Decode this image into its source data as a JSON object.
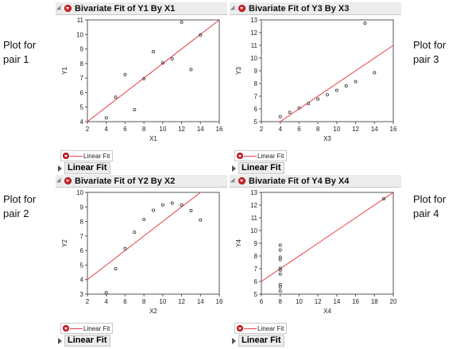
{
  "side_labels": {
    "pair1": "Plot for\npair 1",
    "pair2": "Plot for\npair 2",
    "pair3": "Plot for\npair 3",
    "pair4": "Plot for\npair 4"
  },
  "legend_label": "Linear Fit",
  "fit_label": "Linear Fit",
  "colors": {
    "fit_line": "#e8404a",
    "points": "#333333",
    "header_bg": "#ececec",
    "plot_border": "#555555"
  },
  "panels": [
    {
      "title": "Bivariate Fit of Y1 By X1",
      "chart_data": {
        "type": "scatter",
        "xlabel": "X1",
        "ylabel": "Y1",
        "xlim": [
          2,
          16
        ],
        "ylim": [
          4,
          11
        ],
        "xticks": [
          2,
          4,
          6,
          8,
          10,
          12,
          14,
          16
        ],
        "yticks": [
          4,
          5,
          6,
          7,
          8,
          9,
          10,
          11
        ],
        "x": [
          10,
          8,
          13,
          9,
          11,
          14,
          6,
          4,
          12,
          7,
          5
        ],
        "y": [
          8.04,
          6.95,
          7.58,
          8.81,
          8.33,
          9.96,
          7.24,
          4.26,
          10.84,
          4.82,
          5.68
        ],
        "fit": {
          "intercept": 3.0,
          "slope": 0.5
        }
      }
    },
    {
      "title": "Bivariate Fit of Y3 By X3",
      "chart_data": {
        "type": "scatter",
        "xlabel": "X3",
        "ylabel": "Y3",
        "xlim": [
          2,
          16
        ],
        "ylim": [
          5,
          13
        ],
        "xticks": [
          2,
          4,
          6,
          8,
          10,
          12,
          14,
          16
        ],
        "yticks": [
          5,
          6,
          7,
          8,
          9,
          10,
          11,
          12,
          13
        ],
        "x": [
          10,
          8,
          13,
          9,
          11,
          14,
          6,
          4,
          12,
          7,
          5
        ],
        "y": [
          7.46,
          6.77,
          12.74,
          7.11,
          7.81,
          8.84,
          6.08,
          5.39,
          8.15,
          6.42,
          5.73
        ],
        "fit": {
          "intercept": 3.0,
          "slope": 0.5
        }
      }
    },
    {
      "title": "Bivariate Fit of Y2 By X2",
      "chart_data": {
        "type": "scatter",
        "xlabel": "X2",
        "ylabel": "Y2",
        "xlim": [
          2,
          16
        ],
        "ylim": [
          3,
          10
        ],
        "xticks": [
          2,
          4,
          6,
          8,
          10,
          12,
          14,
          16
        ],
        "yticks": [
          3,
          4,
          5,
          6,
          7,
          8,
          9,
          10
        ],
        "x": [
          10,
          8,
          13,
          9,
          11,
          14,
          6,
          4,
          12,
          7,
          5
        ],
        "y": [
          9.14,
          8.14,
          8.74,
          8.77,
          9.26,
          8.1,
          6.13,
          3.1,
          9.13,
          7.26,
          4.74
        ],
        "fit": {
          "intercept": 3.0,
          "slope": 0.5
        }
      }
    },
    {
      "title": "Bivariate Fit of Y4 By X4",
      "chart_data": {
        "type": "scatter",
        "xlabel": "X4",
        "ylabel": "Y4",
        "xlim": [
          6,
          20
        ],
        "ylim": [
          5,
          13
        ],
        "xticks": [
          6,
          8,
          10,
          12,
          14,
          16,
          18,
          20
        ],
        "yticks": [
          5,
          6,
          7,
          8,
          9,
          10,
          11,
          12,
          13
        ],
        "x": [
          8,
          8,
          8,
          8,
          8,
          8,
          8,
          19,
          8,
          8,
          8
        ],
        "y": [
          6.58,
          5.76,
          7.71,
          8.84,
          8.47,
          7.04,
          5.25,
          12.5,
          5.56,
          7.91,
          6.89
        ],
        "fit": {
          "intercept": 3.0,
          "slope": 0.5
        }
      }
    }
  ]
}
